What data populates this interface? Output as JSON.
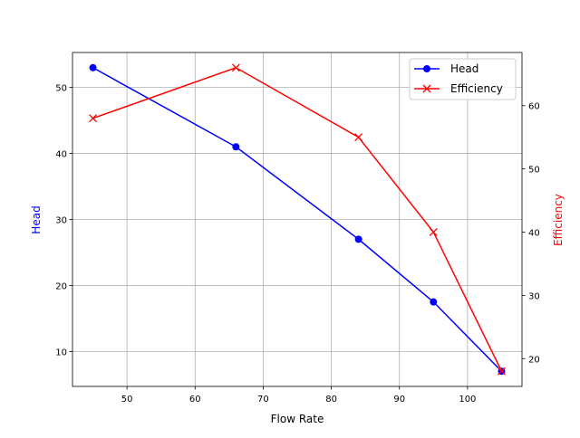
{
  "chart_data": {
    "type": "line",
    "title": "",
    "xlabel": "Flow Rate",
    "ylabel": "Head",
    "y2label": "Efficiency",
    "x": [
      45,
      66,
      84,
      95,
      105
    ],
    "xlim": [
      42,
      108
    ],
    "ylim": [
      4.7,
      55.3
    ],
    "y2lim": [
      15.6,
      68.4
    ],
    "xticks": [
      50,
      60,
      70,
      80,
      90,
      100
    ],
    "yticks": [
      10,
      20,
      30,
      40,
      50
    ],
    "y2ticks": [
      20,
      30,
      40,
      50,
      60
    ],
    "grid": true,
    "legend_position": "top-right",
    "series": [
      {
        "name": "Head",
        "axis": "left",
        "values": [
          53,
          41,
          27,
          17.5,
          7
        ],
        "color": "#0000ff",
        "marker": "circle"
      },
      {
        "name": "Efficiency",
        "axis": "right",
        "values": [
          58,
          66,
          55,
          40,
          18
        ],
        "color": "#ff0000",
        "marker": "x"
      }
    ]
  }
}
